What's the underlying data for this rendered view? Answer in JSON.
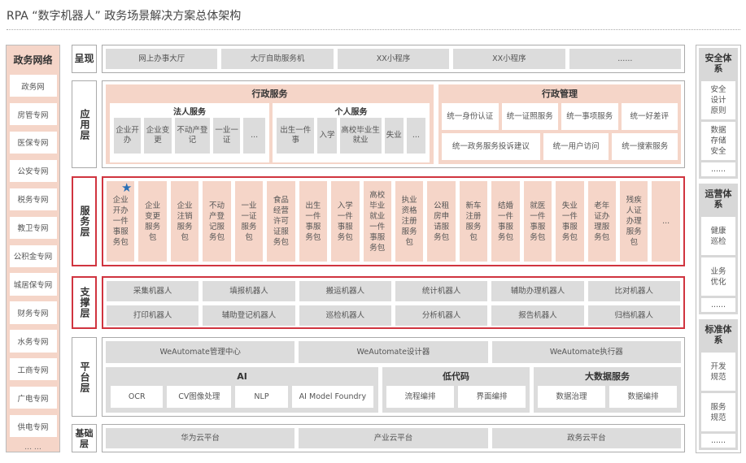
{
  "title": "RPA “数字机器人” 政务场景解决方案总体架构",
  "network": {
    "header": "政务网络",
    "items": [
      "政务网",
      "房管专网",
      "医保专网",
      "公安专网",
      "税务专网",
      "教卫专网",
      "公积金专网",
      "城居保专网",
      "财务专网",
      "水务专网",
      "工商专网",
      "广电专网",
      "供电专网"
    ],
    "more": "… …"
  },
  "layers": {
    "presentation": {
      "label": "呈现",
      "items": [
        "网上办事大厅",
        "大厅自助服务机",
        "XX小程序",
        "XX小程序",
        "......"
      ]
    },
    "application": {
      "label": "应用层",
      "admin_service": {
        "title": "行政服务",
        "legal": {
          "title": "法人服务",
          "items": [
            "企业开办",
            "企业变更",
            "不动产登记",
            "一业一证",
            "..."
          ]
        },
        "personal": {
          "title": "个人服务",
          "items": [
            "出生一件事",
            "入学",
            "高校毕业生就业",
            "失业",
            "..."
          ]
        }
      },
      "admin_mgmt": {
        "title": "行政管理",
        "row1": [
          "统一身份认证",
          "统一证照服务",
          "统一事项服务",
          "统一好差评"
        ],
        "row2": [
          "统一政务服务投诉建议",
          "统一用户访问",
          "统一搜索服务"
        ]
      }
    },
    "service": {
      "label": "服务层",
      "star_icon": "star-icon",
      "star_color": "#2a6fb5",
      "items": [
        "企业开办一件事服务包",
        "企业变更服务包",
        "企业注销服务包",
        "不动产登记服务包",
        "一业一证服务包",
        "食品经营许可证服务包",
        "出生一件事服务包",
        "入学一件事服务包",
        "高校毕业就业一件事服务包",
        "执业资格注册服务包",
        "公租房申请服务包",
        "新车注册服务包",
        "结婚一件事服务包",
        "就医一件事服务包",
        "失业一件事服务包",
        "老年证办理服务包",
        "残疾人证办理服务包",
        "..."
      ]
    },
    "support": {
      "label": "支撑层",
      "row1": [
        "采集机器人",
        "填报机器人",
        "搬运机器人",
        "统计机器人",
        "辅助办理机器人",
        "比对机器人"
      ],
      "row2": [
        "打印机器人",
        "辅助登记机器人",
        "巡检机器人",
        "分析机器人",
        "报告机器人",
        "归档机器人"
      ]
    },
    "platform": {
      "label": "平台层",
      "top": [
        "WeAutomate管理中心",
        "WeAutomate设计器",
        "WeAutomate执行器"
      ],
      "ai": {
        "title": "AI",
        "items": [
          "OCR",
          "CV图像处理",
          "NLP",
          "AI Model Foundry"
        ]
      },
      "lowcode": {
        "title": "低代码",
        "items": [
          "流程编排",
          "界面编排"
        ]
      },
      "bigdata": {
        "title": "大数据服务",
        "items": [
          "数据治理",
          "数据编排"
        ]
      }
    },
    "base": {
      "label": "基础层",
      "items": [
        "华为云平台",
        "产业云平台",
        "政务云平台"
      ]
    }
  },
  "right": [
    {
      "header": "安全体系",
      "items": [
        "安全设计原则",
        "数据存储安全",
        "......"
      ]
    },
    {
      "header": "运营体系",
      "items": [
        "健康巡检",
        "业务优化",
        "......"
      ]
    },
    {
      "header": "标准体系",
      "items": [
        "开发规范",
        "服务规范",
        "......"
      ]
    }
  ],
  "colors": {
    "accent_red": "#d0343f",
    "peach": "#f5d5c8",
    "gray": "#dcdcdc"
  }
}
